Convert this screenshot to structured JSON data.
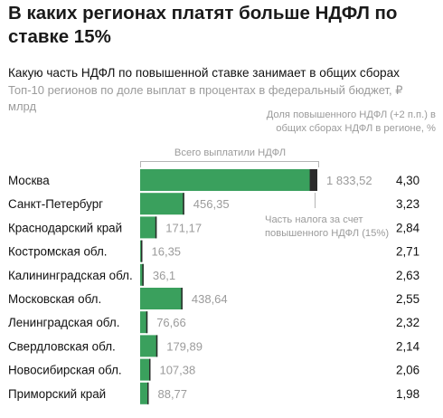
{
  "header": {
    "title": "В каких регионах платят больше НДФЛ по ставке 15%",
    "subtitle": "Какую часть НДФЛ по повышенной ставке занимает в общих сборах",
    "caption": "Топ-10 регионов по доле выплат в процентах в федеральный бюджет, ₽ млрд"
  },
  "annotations": {
    "column_note": "Доля повышенного НДФЛ (+2 п.п.) в общих сборах НДФЛ в регионе, %",
    "total_note": "Всего выплатили НДФЛ",
    "part_note": "Часть налога за счет повышенного НДФЛ (15%)"
  },
  "colors": {
    "bar": "#3aa05d",
    "highlight": "#2b2b2b",
    "muted_text": "#9b9b9b"
  },
  "chart_data": {
    "type": "bar",
    "orientation": "horizontal",
    "categories": [
      "Москва",
      "Санкт-Петербург",
      "Краснодарский край",
      "Костромская обл.",
      "Калининградская обл.",
      "Московская обл.",
      "Ленинградская обл.",
      "Свердловская обл.",
      "Новосибирская обл.",
      "Приморский край"
    ],
    "series": [
      {
        "name": "Всего выплатили НДФЛ",
        "values": [
          1833.52,
          456.35,
          171.17,
          16.35,
          36.1,
          438.64,
          76.66,
          179.89,
          107.38,
          88.77
        ],
        "labels": [
          "1 833,52",
          "456,35",
          "171,17",
          "16,35",
          "36,1",
          "438,64",
          "76,66",
          "179,89",
          "107,38",
          "88,77"
        ]
      },
      {
        "name": "Часть налога за счет повышенного НДФЛ (15%)",
        "values": [
          78.84,
          14.74,
          4.86,
          0.44,
          0.95,
          11.19,
          1.78,
          3.85,
          2.21,
          1.76
        ]
      },
      {
        "name": "Доля повышенного НДФЛ (+2 п.п.) в общих сборах НДФЛ в регионе, %",
        "values": [
          4.3,
          3.23,
          2.84,
          2.71,
          2.63,
          2.55,
          2.32,
          2.14,
          2.06,
          1.98
        ],
        "labels": [
          "4,30",
          "3,23",
          "2,84",
          "2,71",
          "2,63",
          "2,55",
          "2,32",
          "2,14",
          "2,06",
          "1,98"
        ]
      }
    ],
    "xlim": [
      0,
      1833.52
    ]
  }
}
